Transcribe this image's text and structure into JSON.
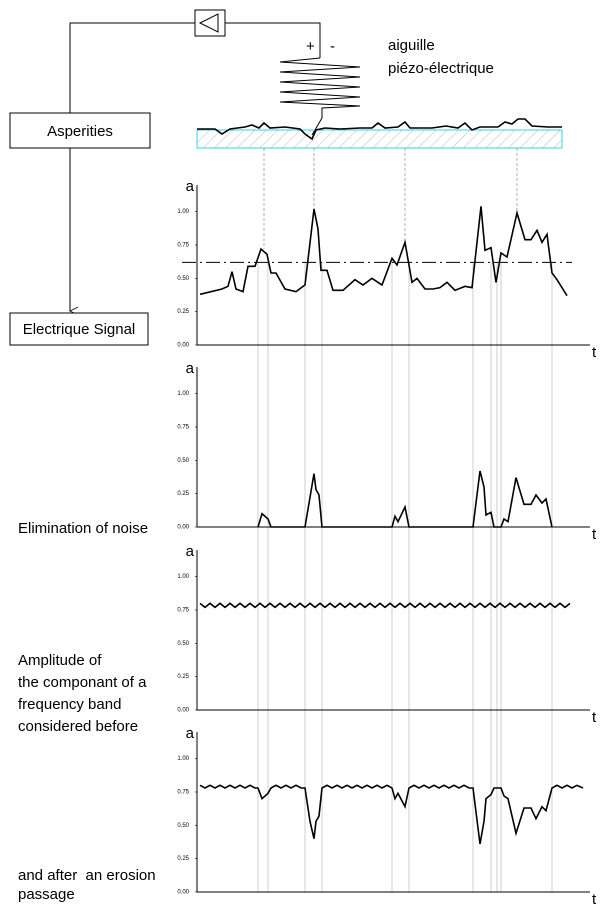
{
  "diagram": {
    "needle_label": [
      "aiguille",
      "piézo-électrique"
    ],
    "plus": "+",
    "minus": "-",
    "boxes": [
      "Asperities",
      "Electrique Signal"
    ],
    "captions": [
      "Elimination of noise",
      "Amplitude of",
      "the componant of a",
      "frequency band",
      "considered before",
      "and after  an erosion",
      "passage"
    ]
  },
  "chart_data": [
    {
      "type": "line",
      "x_label": "t",
      "y_label": "a",
      "color": "#000000",
      "xlim": [
        0,
        393
      ],
      "ylim": [
        0,
        1.2
      ],
      "yticks": [
        {
          "value": 0,
          "label": "0.00"
        },
        {
          "value": 0.25,
          "label": "0.25"
        },
        {
          "value": 0.5,
          "label": "0.50"
        },
        {
          "value": 0.75,
          "label": "0.75"
        },
        {
          "value": 1,
          "label": "1.00"
        }
      ],
      "threshold": 0.62,
      "x": [
        3,
        25,
        31,
        35,
        39,
        46,
        51,
        58,
        64,
        70,
        74,
        79,
        88,
        99,
        108,
        117,
        121,
        124,
        130,
        136,
        146,
        158,
        166,
        175,
        185,
        195,
        200,
        208,
        215,
        220,
        228,
        236,
        243,
        250,
        258,
        268,
        275,
        284,
        288,
        294,
        299,
        304,
        310,
        320,
        328,
        334,
        340,
        345,
        350,
        355,
        360,
        370
      ],
      "values": [
        0.38,
        0.42,
        0.44,
        0.55,
        0.42,
        0.4,
        0.59,
        0.59,
        0.72,
        0.68,
        0.54,
        0.54,
        0.42,
        0.4,
        0.45,
        1.02,
        0.87,
        0.56,
        0.56,
        0.41,
        0.41,
        0.49,
        0.45,
        0.5,
        0.45,
        0.65,
        0.6,
        0.77,
        0.47,
        0.5,
        0.42,
        0.42,
        0.43,
        0.47,
        0.41,
        0.44,
        0.43,
        1.04,
        0.71,
        0.73,
        0.47,
        0.69,
        0.66,
        0.99,
        0.79,
        0.79,
        0.86,
        0.77,
        0.83,
        0.54,
        0.49,
        0.37
      ]
    },
    {
      "type": "line",
      "x_label": "t",
      "y_label": "a",
      "color": "#000000",
      "xlim": [
        0,
        393
      ],
      "ylim": [
        0,
        1.2
      ],
      "yticks": [
        {
          "value": 0,
          "label": "0.00"
        },
        {
          "value": 0.25,
          "label": "0.25"
        },
        {
          "value": 0.5,
          "label": "0.50"
        },
        {
          "value": 0.75,
          "label": "0.75"
        },
        {
          "value": 1,
          "label": "1.00"
        }
      ],
      "x": [
        61,
        65,
        71,
        74,
        108,
        117,
        119,
        122,
        125,
        195,
        198,
        201,
        208,
        212,
        276,
        283,
        287,
        289,
        294,
        297,
        304,
        307,
        311,
        319,
        327,
        334,
        339,
        345,
        349,
        355
      ],
      "values": [
        0,
        0.1,
        0.06,
        0,
        0,
        0.4,
        0.28,
        0.24,
        0,
        0,
        0.08,
        0.04,
        0.15,
        0,
        0,
        0.42,
        0.3,
        0.09,
        0.11,
        0,
        0,
        0.06,
        0.04,
        0.37,
        0.17,
        0.17,
        0.24,
        0.18,
        0.21,
        0
      ]
    },
    {
      "type": "line",
      "x_label": "t",
      "y_label": "a",
      "color": "#000000",
      "xlim": [
        0,
        393
      ],
      "ylim": [
        0,
        1.2
      ],
      "yticks": [
        {
          "value": 0,
          "label": "0.00"
        },
        {
          "value": 0.25,
          "label": "0.25"
        },
        {
          "value": 0.5,
          "label": "0.50"
        },
        {
          "value": 0.75,
          "label": "0.75"
        },
        {
          "value": 1,
          "label": "1.00"
        }
      ],
      "x": [
        3,
        8,
        13,
        18,
        23,
        28,
        33,
        38,
        43,
        48,
        53,
        58,
        63,
        68,
        73,
        78,
        83,
        88,
        93,
        98,
        103,
        108,
        113,
        118,
        123,
        128,
        133,
        138,
        143,
        148,
        153,
        158,
        163,
        168,
        173,
        178,
        183,
        188,
        193,
        198,
        203,
        208,
        213,
        218,
        223,
        228,
        233,
        238,
        243,
        248,
        253,
        258,
        263,
        268,
        273,
        278,
        283,
        288,
        293,
        298,
        303,
        308,
        313,
        318,
        323,
        328,
        333,
        338,
        343,
        348,
        353,
        358,
        363,
        368,
        373
      ],
      "values": [
        0.8,
        0.77,
        0.8,
        0.77,
        0.8,
        0.77,
        0.8,
        0.77,
        0.8,
        0.77,
        0.8,
        0.77,
        0.8,
        0.77,
        0.8,
        0.77,
        0.8,
        0.77,
        0.8,
        0.77,
        0.8,
        0.77,
        0.8,
        0.77,
        0.8,
        0.77,
        0.8,
        0.77,
        0.8,
        0.77,
        0.8,
        0.77,
        0.8,
        0.77,
        0.8,
        0.77,
        0.8,
        0.77,
        0.8,
        0.77,
        0.8,
        0.77,
        0.8,
        0.77,
        0.8,
        0.77,
        0.8,
        0.77,
        0.8,
        0.77,
        0.8,
        0.77,
        0.8,
        0.77,
        0.8,
        0.77,
        0.8,
        0.77,
        0.8,
        0.77,
        0.8,
        0.77,
        0.8,
        0.77,
        0.8,
        0.77,
        0.8,
        0.77,
        0.8,
        0.77,
        0.8,
        0.77,
        0.8,
        0.77,
        0.8
      ]
    },
    {
      "type": "line",
      "x_label": "t",
      "y_label": "a",
      "color": "#000000",
      "xlim": [
        0,
        393
      ],
      "ylim": [
        0,
        1.2
      ],
      "yticks": [
        {
          "value": 0,
          "label": "0.00"
        },
        {
          "value": 0.25,
          "label": "0.25"
        },
        {
          "value": 0.5,
          "label": "0.50"
        },
        {
          "value": 0.75,
          "label": "0.75"
        },
        {
          "value": 1,
          "label": "1.00"
        }
      ],
      "x": [
        3,
        8,
        13,
        18,
        23,
        28,
        33,
        38,
        43,
        48,
        53,
        58,
        61,
        65,
        71,
        74,
        79,
        84,
        89,
        94,
        99,
        104,
        108,
        113,
        117,
        119,
        122,
        125,
        130,
        135,
        140,
        145,
        150,
        155,
        160,
        165,
        170,
        175,
        180,
        185,
        190,
        195,
        198,
        201,
        208,
        212,
        217,
        222,
        227,
        232,
        237,
        242,
        247,
        252,
        257,
        262,
        267,
        272,
        276,
        283,
        287,
        289,
        294,
        297,
        304,
        307,
        311,
        319,
        327,
        334,
        339,
        345,
        349,
        355,
        360,
        365,
        370,
        375,
        380,
        386
      ],
      "values": [
        0.8,
        0.78,
        0.8,
        0.78,
        0.8,
        0.78,
        0.8,
        0.78,
        0.8,
        0.78,
        0.8,
        0.78,
        0.78,
        0.7,
        0.74,
        0.78,
        0.8,
        0.78,
        0.8,
        0.78,
        0.8,
        0.78,
        0.78,
        0.53,
        0.4,
        0.53,
        0.57,
        0.78,
        0.8,
        0.78,
        0.8,
        0.78,
        0.8,
        0.78,
        0.8,
        0.78,
        0.8,
        0.78,
        0.8,
        0.78,
        0.8,
        0.78,
        0.7,
        0.74,
        0.64,
        0.78,
        0.8,
        0.78,
        0.8,
        0.78,
        0.8,
        0.78,
        0.8,
        0.78,
        0.8,
        0.78,
        0.8,
        0.78,
        0.78,
        0.36,
        0.53,
        0.7,
        0.73,
        0.78,
        0.78,
        0.72,
        0.7,
        0.44,
        0.63,
        0.63,
        0.55,
        0.64,
        0.61,
        0.78,
        0.8,
        0.78,
        0.8,
        0.78,
        0.8,
        0.78
      ]
    }
  ]
}
